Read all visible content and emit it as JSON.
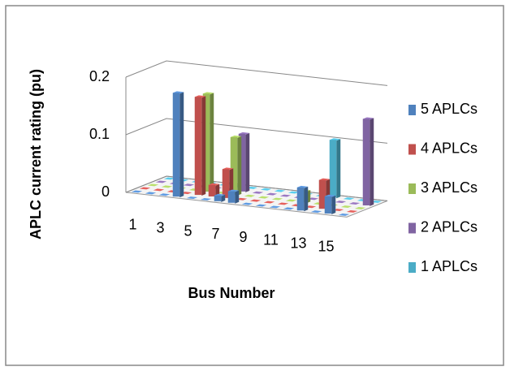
{
  "chart_data": {
    "type": "bar3d",
    "x_label": "Bus Number",
    "y_label": "APLC current rating (pu)",
    "categories": [
      "1",
      null,
      "3",
      null,
      "5",
      null,
      "7",
      null,
      "9",
      null,
      "11",
      null,
      "13",
      null,
      "15",
      null
    ],
    "series": [
      {
        "name": "5 APLCs",
        "color": "#4f81bd",
        "values": [
          0,
          0,
          0,
          0.18,
          0,
          0,
          0.01,
          0.02,
          0,
          0,
          0,
          0,
          0.04,
          0,
          0.03,
          0
        ]
      },
      {
        "name": "4 APLCs",
        "color": "#c0504d",
        "values": [
          0,
          0,
          0,
          0,
          0.17,
          0.02,
          0.05,
          0,
          0,
          0,
          0,
          0,
          0,
          0.05,
          0,
          0
        ]
      },
      {
        "name": "3 APLCs",
        "color": "#9bbb59",
        "values": [
          0,
          0,
          0,
          0,
          0.17,
          0,
          0.1,
          0,
          0,
          0,
          0,
          0.02,
          0,
          0,
          0,
          0
        ]
      },
      {
        "name": "2 APLCs",
        "color": "#8064a2",
        "values": [
          0,
          0,
          0,
          0,
          0,
          0,
          0.1,
          0,
          0,
          0,
          0,
          0,
          0,
          0,
          0,
          0.15
        ]
      },
      {
        "name": "1 APLCs",
        "color": "#4bacc6",
        "values": [
          0,
          0,
          0,
          0,
          0,
          0,
          0,
          0,
          0,
          0,
          0,
          0,
          0.1,
          0,
          0,
          0
        ]
      }
    ],
    "ylim": [
      0,
      0.2
    ],
    "yticks": [
      0,
      0.1,
      0.2
    ],
    "grid": true,
    "legend": "right"
  }
}
